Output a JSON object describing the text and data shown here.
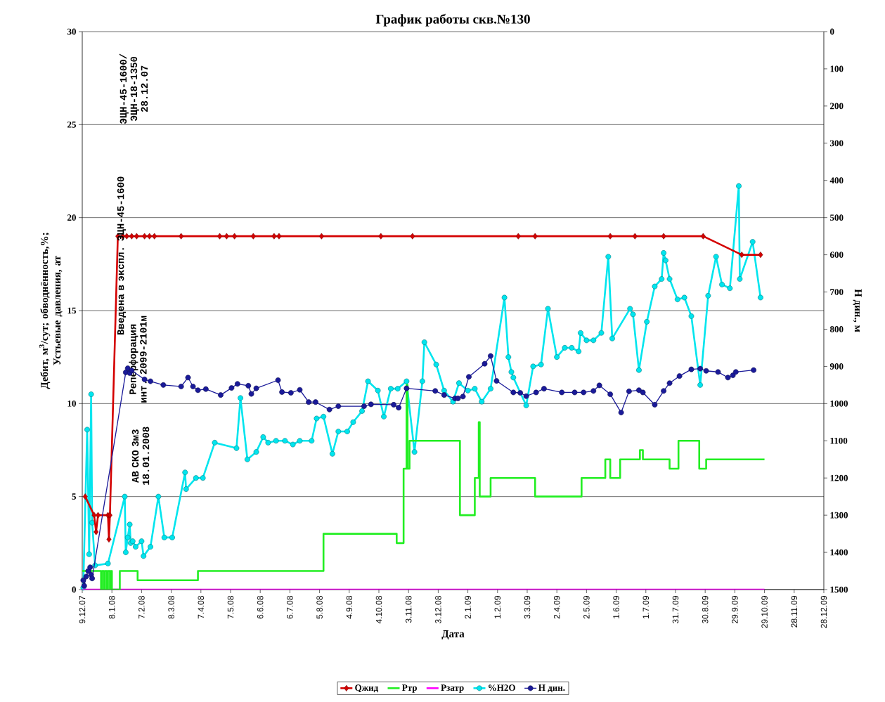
{
  "chart_data": {
    "type": "line",
    "title": "График работы скв.№130",
    "xlabel": "Дата",
    "ylabel": "Дебит, м$^{3}$/сут; обводнённость,%; Устьевые давления, ат",
    "y2label": "Н дин., м",
    "xlim": [
      "2007-12-09",
      "2009-12-28"
    ],
    "xticks": [
      {
        "value": "2007-12-09",
        "label": "9.12.07"
      },
      {
        "value": "2008-01-08",
        "label": "8.1.08"
      },
      {
        "value": "2008-02-07",
        "label": "7.2.08"
      },
      {
        "value": "2008-03-08",
        "label": "8.3.08"
      },
      {
        "value": "2008-04-07",
        "label": "7.4.08"
      },
      {
        "value": "2008-05-07",
        "label": "7.5.08"
      },
      {
        "value": "2008-06-06",
        "label": "6.6.08"
      },
      {
        "value": "2008-07-06",
        "label": "6.7.08"
      },
      {
        "value": "2008-08-05",
        "label": "5.8.08"
      },
      {
        "value": "2008-09-04",
        "label": "4.9.08"
      },
      {
        "value": "2008-10-04",
        "label": "4.10.08"
      },
      {
        "value": "2008-11-03",
        "label": "3.11.08"
      },
      {
        "value": "2008-12-03",
        "label": "3.12.08"
      },
      {
        "value": "2009-01-02",
        "label": "2.1.09"
      },
      {
        "value": "2009-02-01",
        "label": "1.2.09"
      },
      {
        "value": "2009-03-03",
        "label": "3.3.09"
      },
      {
        "value": "2009-04-02",
        "label": "2.4.09"
      },
      {
        "value": "2009-05-02",
        "label": "2.5.09"
      },
      {
        "value": "2009-06-01",
        "label": "1.6.09"
      },
      {
        "value": "2009-07-01",
        "label": "1.7.09"
      },
      {
        "value": "2009-07-31",
        "label": "31.7.09"
      },
      {
        "value": "2009-08-30",
        "label": "30.8.09"
      },
      {
        "value": "2009-09-29",
        "label": "29.9.09"
      },
      {
        "value": "2009-10-29",
        "label": "29.10.09"
      },
      {
        "value": "2009-11-28",
        "label": "28.11.09"
      },
      {
        "value": "2009-12-28",
        "label": "28.12.09"
      }
    ],
    "ylim": [
      0,
      30
    ],
    "yticks": [
      0,
      5,
      10,
      15,
      20,
      25,
      30
    ],
    "y2lim": [
      1500,
      0
    ],
    "y2ticks": [
      0,
      100,
      200,
      300,
      400,
      500,
      600,
      700,
      800,
      900,
      1000,
      1100,
      1200,
      1300,
      1400,
      1500
    ],
    "grid": "y",
    "legend": "bottom",
    "series": [
      {
        "name": "Qжид",
        "color": "#d40000",
        "marker": "diamond",
        "x": [
          "2007-12-12",
          "2007-12-21",
          "2007-12-23",
          "2007-12-25",
          "2008-01-04",
          "2008-01-05",
          "2008-01-06",
          "2008-01-14",
          "2008-01-19",
          "2008-01-23",
          "2008-01-28",
          "2008-02-02",
          "2008-02-10",
          "2008-02-15",
          "2008-02-20",
          "2008-03-18",
          "2008-04-26",
          "2008-05-03",
          "2008-05-11",
          "2008-05-30",
          "2008-06-20",
          "2008-06-25",
          "2008-08-07",
          "2008-10-06",
          "2008-11-07",
          "2009-02-22",
          "2009-03-11",
          "2009-05-26",
          "2009-06-20",
          "2009-07-19",
          "2009-08-28",
          "2009-10-06",
          "2009-10-25"
        ],
        "values": [
          5,
          4,
          3.1,
          4,
          4,
          2.7,
          4,
          19,
          19,
          19,
          19,
          19,
          19,
          19,
          19,
          19,
          19,
          19,
          19,
          19,
          19,
          19,
          19,
          19,
          19,
          19,
          19,
          19,
          19,
          19,
          19,
          18,
          18
        ]
      },
      {
        "name": "Ртр",
        "type": "step",
        "color": "#22ee22",
        "marker": "none",
        "x": [
          "2007-12-09",
          "2007-12-28",
          "2007-12-29",
          "2007-12-31",
          "2008-01-01",
          "2008-01-03",
          "2008-01-04",
          "2008-01-06",
          "2008-01-07",
          "2008-01-08",
          "2008-01-16",
          "2008-02-03",
          "2008-04-04",
          "2008-08-09",
          "2008-10-22",
          "2008-10-29",
          "2008-11-01",
          "2008-11-02",
          "2008-11-04",
          "2008-12-25",
          "2009-01-09",
          "2009-01-13",
          "2009-01-14",
          "2009-01-25",
          "2009-03-11",
          "2009-04-27",
          "2009-05-21",
          "2009-05-26",
          "2009-06-05",
          "2009-06-25",
          "2009-06-28",
          "2009-07-25",
          "2009-08-03",
          "2009-08-24",
          "2009-08-31",
          "2009-10-29"
        ],
        "values": [
          1,
          0,
          1,
          0,
          1,
          0,
          1,
          0,
          1,
          0,
          1,
          0.5,
          1,
          3,
          2.5,
          6.5,
          11,
          6.5,
          8,
          4,
          6,
          9,
          5,
          6,
          5,
          6,
          7,
          6,
          7,
          7.5,
          7,
          6.5,
          8,
          6.5,
          7,
          7
        ]
      },
      {
        "name": "Рзатр",
        "color": "#ff00ff",
        "marker": "none",
        "x": [
          "2007-12-09",
          "2009-10-29"
        ],
        "values": [
          0,
          0
        ]
      },
      {
        "name": "%H2O",
        "color": "#00e5ee",
        "marker": "circle",
        "x": [
          "2007-12-10",
          "2007-12-14",
          "2007-12-16",
          "2007-12-18",
          "2007-12-19",
          "2007-12-22",
          "2008-01-04",
          "2008-01-21",
          "2008-01-22",
          "2008-01-24",
          "2008-01-26",
          "2008-01-27",
          "2008-01-29",
          "2008-02-01",
          "2008-02-07",
          "2008-02-09",
          "2008-02-16",
          "2008-02-24",
          "2008-03-01",
          "2008-03-09",
          "2008-03-22",
          "2008-03-23",
          "2008-04-02",
          "2008-04-09",
          "2008-04-21",
          "2008-05-13",
          "2008-05-17",
          "2008-05-24",
          "2008-06-02",
          "2008-06-09",
          "2008-06-14",
          "2008-06-22",
          "2008-07-01",
          "2008-07-09",
          "2008-07-16",
          "2008-07-28",
          "2008-08-02",
          "2008-08-09",
          "2008-08-18",
          "2008-08-24",
          "2008-09-02",
          "2008-09-08",
          "2008-09-17",
          "2008-09-23",
          "2008-10-03",
          "2008-10-09",
          "2008-10-16",
          "2008-10-23",
          "2008-11-01",
          "2008-11-09",
          "2008-11-17",
          "2008-11-19",
          "2008-12-01",
          "2008-12-09",
          "2008-12-18",
          "2008-12-24",
          "2009-01-02",
          "2009-01-09",
          "2009-01-16",
          "2009-01-25",
          "2009-02-08",
          "2009-02-12",
          "2009-02-15",
          "2009-02-17",
          "2009-03-02",
          "2009-03-09",
          "2009-03-17",
          "2009-03-24",
          "2009-04-02",
          "2009-04-10",
          "2009-04-17",
          "2009-04-24",
          "2009-04-26",
          "2009-05-02",
          "2009-05-09",
          "2009-05-17",
          "2009-05-24",
          "2009-05-28",
          "2009-06-15",
          "2009-06-18",
          "2009-06-24",
          "2009-07-02",
          "2009-07-10",
          "2009-07-17",
          "2009-07-19",
          "2009-07-21",
          "2009-07-25",
          "2009-08-02",
          "2009-08-09",
          "2009-08-16",
          "2009-08-25",
          "2009-09-02",
          "2009-09-10",
          "2009-09-16",
          "2009-09-24",
          "2009-10-03",
          "2009-10-04",
          "2009-10-17",
          "2009-10-25"
        ],
        "values": [
          0.1,
          8.6,
          1.9,
          10.5,
          3.6,
          1.3,
          1.4,
          5.0,
          2.0,
          2.8,
          3.5,
          2.5,
          2.6,
          2.3,
          2.6,
          1.8,
          2.3,
          5.0,
          2.8,
          2.8,
          6.3,
          5.4,
          6.0,
          6.0,
          7.9,
          7.6,
          10.3,
          7.0,
          7.4,
          8.2,
          7.9,
          8.0,
          8.0,
          7.8,
          8.0,
          8.0,
          9.2,
          9.3,
          7.3,
          8.5,
          8.5,
          9.0,
          9.6,
          11.2,
          10.7,
          9.3,
          10.8,
          10.8,
          11.2,
          7.4,
          11.2,
          13.3,
          12.1,
          10.7,
          10.1,
          11.1,
          10.7,
          10.8,
          10.1,
          10.8,
          15.7,
          12.5,
          11.7,
          11.4,
          9.9,
          12.0,
          12.1,
          15.1,
          12.5,
          13.0,
          13.0,
          12.8,
          13.8,
          13.4,
          13.4,
          13.8,
          17.9,
          13.5,
          15.1,
          14.8,
          11.8,
          14.4,
          16.3,
          16.7,
          18.1,
          17.7,
          16.7,
          15.6,
          15.7,
          14.7,
          11.0,
          15.8,
          17.9,
          16.4,
          16.2,
          21.7,
          16.7,
          18.7,
          15.7
        ]
      },
      {
        "name": "Н дин.",
        "color": "#1a1a99",
        "marker": "circle",
        "axis": "y2",
        "x": [
          "2007-12-10",
          "2007-12-11",
          "2007-12-13",
          "2007-12-15",
          "2007-12-17",
          "2007-12-18",
          "2007-12-19",
          "2008-01-22",
          "2008-01-24",
          "2008-01-26",
          "2008-01-28",
          "2008-02-10",
          "2008-02-16",
          "2008-02-29",
          "2008-03-18",
          "2008-03-25",
          "2008-03-30",
          "2008-04-04",
          "2008-04-12",
          "2008-04-27",
          "2008-05-08",
          "2008-05-14",
          "2008-05-25",
          "2008-05-28",
          "2008-06-02",
          "2008-06-24",
          "2008-06-28",
          "2008-07-07",
          "2008-07-16",
          "2008-07-25",
          "2008-08-01",
          "2008-08-15",
          "2008-08-24",
          "2008-09-19",
          "2008-09-26",
          "2008-10-19",
          "2008-10-24",
          "2008-11-01",
          "2008-11-30",
          "2008-12-09",
          "2008-12-20",
          "2008-12-23",
          "2008-12-28",
          "2009-01-03",
          "2009-01-19",
          "2009-01-25",
          "2009-01-31",
          "2009-02-17",
          "2009-02-24",
          "2009-03-02",
          "2009-03-12",
          "2009-03-20",
          "2009-04-07",
          "2009-04-20",
          "2009-04-29",
          "2009-05-09",
          "2009-05-15",
          "2009-05-26",
          "2009-06-06",
          "2009-06-14",
          "2009-06-24",
          "2009-06-28",
          "2009-07-10",
          "2009-07-19",
          "2009-07-25",
          "2009-08-04",
          "2009-08-16",
          "2009-08-25",
          "2009-08-31",
          "2009-09-12",
          "2009-09-22",
          "2009-09-27",
          "2009-09-30",
          "2009-10-18"
        ],
        "values": [
          1475,
          1490,
          1465,
          1450,
          1440,
          1460,
          1470,
          916,
          905,
          918,
          911,
          935,
          940,
          950,
          954,
          930,
          954,
          964,
          961,
          977,
          958,
          947,
          952,
          974,
          959,
          937,
          969,
          971,
          963,
          996,
          996,
          1016,
          1007,
          1007,
          1002,
          1003,
          1011,
          959,
          966,
          977,
          986,
          986,
          981,
          928,
          893,
          872,
          939,
          970,
          971,
          980,
          970,
          960,
          970,
          970,
          970,
          966,
          951,
          975,
          1024,
          967,
          964,
          970,
          1003,
          966,
          945,
          926,
          908,
          906,
          912,
          915,
          930,
          924,
          915,
          910
        ]
      }
    ],
    "annotations": [
      "ЭЦН-45-1600/ ЭЦН-18-1350 28.12.07",
      "Введена в экспл. ЭЦН-45-1600",
      "Реперфорация инт. 2099-2101м",
      "АВ СКО 3м3 18.01.2008"
    ]
  }
}
